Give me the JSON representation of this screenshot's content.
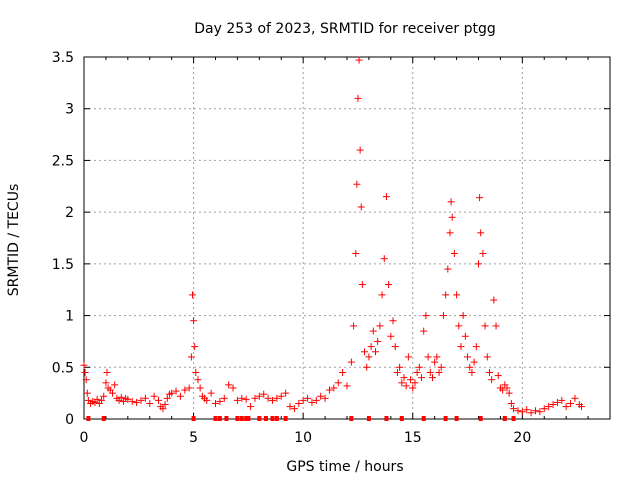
{
  "chart_data": {
    "type": "scatter",
    "title": "Day 253 of 2023, SRMTID for receiver ptgg",
    "xlabel": "GPS time / hours",
    "ylabel": "SRMTID / TECUs",
    "xlim": [
      0,
      24
    ],
    "ylim": [
      0,
      3.5
    ],
    "xticks": [
      0,
      5,
      10,
      15,
      20
    ],
    "yticks": [
      0,
      0.5,
      1,
      1.5,
      2,
      2.5,
      3,
      3.5
    ],
    "ytick_labels": [
      "0",
      "0.5",
      "1",
      "1.5",
      "2",
      "2.5",
      "3",
      "3.5"
    ],
    "grid": true,
    "marker": "+",
    "color": "#ff0000",
    "series": [
      {
        "name": "SRMTID",
        "points": [
          [
            0.0,
            0.52
          ],
          [
            0.05,
            0.45
          ],
          [
            0.1,
            0.38
          ],
          [
            0.15,
            0.25
          ],
          [
            0.2,
            0.18
          ],
          [
            0.3,
            0.15
          ],
          [
            0.4,
            0.17
          ],
          [
            0.5,
            0.16
          ],
          [
            0.6,
            0.19
          ],
          [
            0.7,
            0.15
          ],
          [
            0.8,
            0.18
          ],
          [
            0.9,
            0.22
          ],
          [
            1.0,
            0.35
          ],
          [
            1.05,
            0.45
          ],
          [
            1.1,
            0.3
          ],
          [
            1.2,
            0.28
          ],
          [
            1.3,
            0.25
          ],
          [
            1.4,
            0.33
          ],
          [
            1.5,
            0.2
          ],
          [
            1.6,
            0.18
          ],
          [
            1.7,
            0.21
          ],
          [
            1.8,
            0.17
          ],
          [
            1.9,
            0.2
          ],
          [
            2.0,
            0.19
          ],
          [
            2.2,
            0.17
          ],
          [
            2.4,
            0.16
          ],
          [
            2.6,
            0.18
          ],
          [
            2.8,
            0.2
          ],
          [
            3.0,
            0.15
          ],
          [
            3.2,
            0.22
          ],
          [
            3.4,
            0.18
          ],
          [
            3.5,
            0.12
          ],
          [
            3.6,
            0.1
          ],
          [
            3.7,
            0.14
          ],
          [
            3.8,
            0.2
          ],
          [
            3.9,
            0.24
          ],
          [
            4.0,
            0.25
          ],
          [
            4.2,
            0.27
          ],
          [
            4.4,
            0.22
          ],
          [
            4.6,
            0.28
          ],
          [
            4.8,
            0.3
          ],
          [
            4.9,
            0.6
          ],
          [
            4.95,
            1.2
          ],
          [
            5.0,
            0.95
          ],
          [
            5.05,
            0.7
          ],
          [
            5.1,
            0.45
          ],
          [
            5.2,
            0.38
          ],
          [
            5.3,
            0.3
          ],
          [
            5.4,
            0.22
          ],
          [
            5.5,
            0.2
          ],
          [
            5.6,
            0.18
          ],
          [
            5.8,
            0.25
          ],
          [
            6.0,
            0.15
          ],
          [
            6.2,
            0.17
          ],
          [
            6.4,
            0.2
          ],
          [
            6.6,
            0.33
          ],
          [
            6.8,
            0.3
          ],
          [
            7.0,
            0.18
          ],
          [
            7.2,
            0.2
          ],
          [
            7.4,
            0.19
          ],
          [
            7.6,
            0.12
          ],
          [
            7.8,
            0.2
          ],
          [
            8.0,
            0.22
          ],
          [
            8.2,
            0.24
          ],
          [
            8.4,
            0.2
          ],
          [
            8.6,
            0.18
          ],
          [
            8.8,
            0.2
          ],
          [
            9.0,
            0.22
          ],
          [
            9.2,
            0.25
          ],
          [
            9.4,
            0.12
          ],
          [
            9.6,
            0.1
          ],
          [
            9.8,
            0.15
          ],
          [
            10.0,
            0.18
          ],
          [
            10.2,
            0.2
          ],
          [
            10.4,
            0.16
          ],
          [
            10.6,
            0.18
          ],
          [
            10.8,
            0.22
          ],
          [
            11.0,
            0.2
          ],
          [
            11.2,
            0.28
          ],
          [
            11.4,
            0.3
          ],
          [
            11.6,
            0.35
          ],
          [
            11.8,
            0.45
          ],
          [
            12.0,
            0.32
          ],
          [
            12.2,
            0.55
          ],
          [
            12.3,
            0.9
          ],
          [
            12.4,
            1.6
          ],
          [
            12.45,
            2.27
          ],
          [
            12.5,
            3.1
          ],
          [
            12.55,
            3.47
          ],
          [
            12.6,
            2.6
          ],
          [
            12.65,
            2.05
          ],
          [
            12.7,
            1.3
          ],
          [
            12.8,
            0.65
          ],
          [
            12.9,
            0.5
          ],
          [
            13.0,
            0.6
          ],
          [
            13.1,
            0.7
          ],
          [
            13.2,
            0.85
          ],
          [
            13.3,
            0.65
          ],
          [
            13.4,
            0.75
          ],
          [
            13.5,
            0.9
          ],
          [
            13.6,
            1.2
          ],
          [
            13.7,
            1.55
          ],
          [
            13.8,
            2.15
          ],
          [
            13.9,
            1.3
          ],
          [
            14.0,
            0.8
          ],
          [
            14.1,
            0.95
          ],
          [
            14.2,
            0.7
          ],
          [
            14.3,
            0.45
          ],
          [
            14.4,
            0.5
          ],
          [
            14.5,
            0.35
          ],
          [
            14.6,
            0.4
          ],
          [
            14.7,
            0.32
          ],
          [
            14.8,
            0.6
          ],
          [
            14.9,
            0.38
          ],
          [
            15.0,
            0.3
          ],
          [
            15.1,
            0.35
          ],
          [
            15.2,
            0.45
          ],
          [
            15.3,
            0.5
          ],
          [
            15.4,
            0.4
          ],
          [
            15.5,
            0.85
          ],
          [
            15.6,
            1.0
          ],
          [
            15.7,
            0.6
          ],
          [
            15.8,
            0.45
          ],
          [
            15.9,
            0.4
          ],
          [
            16.0,
            0.55
          ],
          [
            16.1,
            0.6
          ],
          [
            16.2,
            0.45
          ],
          [
            16.3,
            0.5
          ],
          [
            16.4,
            1.0
          ],
          [
            16.5,
            1.2
          ],
          [
            16.6,
            1.45
          ],
          [
            16.7,
            1.8
          ],
          [
            16.75,
            2.1
          ],
          [
            16.8,
            1.95
          ],
          [
            16.9,
            1.6
          ],
          [
            17.0,
            1.2
          ],
          [
            17.1,
            0.9
          ],
          [
            17.2,
            0.7
          ],
          [
            17.3,
            1.0
          ],
          [
            17.4,
            0.8
          ],
          [
            17.5,
            0.6
          ],
          [
            17.6,
            0.5
          ],
          [
            17.7,
            0.45
          ],
          [
            17.8,
            0.55
          ],
          [
            17.9,
            0.7
          ],
          [
            18.0,
            1.5
          ],
          [
            18.05,
            2.14
          ],
          [
            18.1,
            1.8
          ],
          [
            18.2,
            1.6
          ],
          [
            18.3,
            0.9
          ],
          [
            18.4,
            0.6
          ],
          [
            18.5,
            0.45
          ],
          [
            18.6,
            0.38
          ],
          [
            18.7,
            1.15
          ],
          [
            18.8,
            0.9
          ],
          [
            18.9,
            0.42
          ],
          [
            19.0,
            0.3
          ],
          [
            19.1,
            0.28
          ],
          [
            19.2,
            0.33
          ],
          [
            19.3,
            0.3
          ],
          [
            19.4,
            0.25
          ],
          [
            19.5,
            0.15
          ],
          [
            19.6,
            0.1
          ],
          [
            19.8,
            0.08
          ],
          [
            20.0,
            0.07
          ],
          [
            20.2,
            0.09
          ],
          [
            20.4,
            0.06
          ],
          [
            20.6,
            0.08
          ],
          [
            20.8,
            0.07
          ],
          [
            21.0,
            0.1
          ],
          [
            21.2,
            0.12
          ],
          [
            21.4,
            0.14
          ],
          [
            21.6,
            0.16
          ],
          [
            21.8,
            0.18
          ],
          [
            22.0,
            0.12
          ],
          [
            22.2,
            0.15
          ],
          [
            22.4,
            0.2
          ],
          [
            22.6,
            0.14
          ],
          [
            22.7,
            0.12
          ]
        ]
      }
    ],
    "baseline_markers_x": [
      0.2,
      0.9,
      5.0,
      6.0,
      6.2,
      6.5,
      7.0,
      7.2,
      7.4,
      7.5,
      8.0,
      8.3,
      8.6,
      8.8,
      9.2,
      12.2,
      13.0,
      13.8,
      14.5,
      15.5,
      16.5,
      17.0,
      18.1,
      19.2,
      19.6
    ]
  }
}
